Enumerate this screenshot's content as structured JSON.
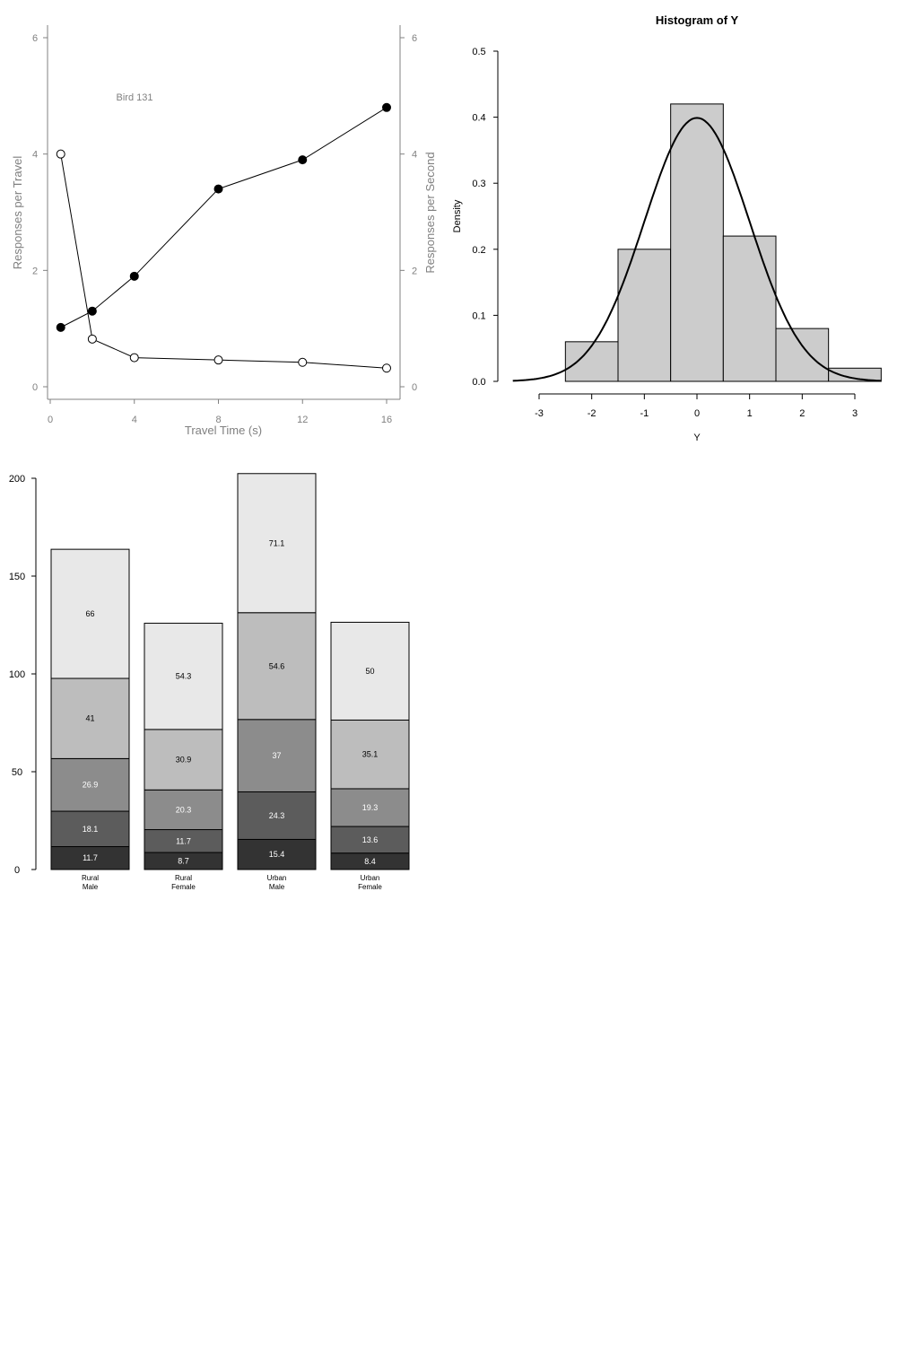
{
  "chart_data": [
    {
      "type": "line",
      "annotation": "Bird 131",
      "xlabel": "Travel Time (s)",
      "ylabel_left": "Responses per Travel",
      "ylabel_right": "Responses per Second",
      "xlim": [
        0,
        16
      ],
      "ylim": [
        0,
        6
      ],
      "x_ticks": [
        0,
        4,
        8,
        12,
        16
      ],
      "y_ticks": [
        0,
        2,
        4,
        6
      ],
      "axis_color": "#808080",
      "series": [
        {
          "marker": "filled-circle",
          "x": [
            0.5,
            2,
            4,
            8,
            12,
            16
          ],
          "y": [
            1.02,
            1.3,
            1.9,
            3.4,
            3.9,
            4.8
          ]
        },
        {
          "marker": "open-circle",
          "x": [
            0.5,
            2,
            4,
            8,
            12,
            16
          ],
          "y": [
            4.0,
            0.82,
            0.5,
            0.46,
            0.42,
            0.32
          ]
        }
      ]
    },
    {
      "type": "bar",
      "subtype": "histogram-with-density-curve",
      "title": "Histogram of Y",
      "xlabel": "Y",
      "ylabel": "Density",
      "xlim": [
        -3.5,
        3.5
      ],
      "ylim": [
        0,
        0.5
      ],
      "x_ticks": [
        -3,
        -2,
        -1,
        0,
        1,
        2,
        3
      ],
      "y_ticks": [
        0.0,
        0.1,
        0.2,
        0.3,
        0.4,
        0.5
      ],
      "y_tick_labels": [
        "0.0",
        "0.1",
        "0.2",
        "0.3",
        "0.4",
        "0.5"
      ],
      "bins": [
        {
          "from": -2.5,
          "to": -1.5,
          "density": 0.06
        },
        {
          "from": -1.5,
          "to": -0.5,
          "density": 0.2
        },
        {
          "from": -0.5,
          "to": 0.5,
          "density": 0.42
        },
        {
          "from": 0.5,
          "to": 1.5,
          "density": 0.22
        },
        {
          "from": 1.5,
          "to": 2.5,
          "density": 0.08
        },
        {
          "from": 2.5,
          "to": 3.5,
          "density": 0.02
        }
      ],
      "curve": {
        "kind": "normal-density",
        "mean": 0,
        "sd": 1
      },
      "bar_color": "#cccccc"
    },
    {
      "type": "bar",
      "subtype": "stacked",
      "ylim": [
        0,
        200
      ],
      "y_ticks": [
        0,
        50,
        100,
        150,
        200
      ],
      "categories": [
        [
          "Rural",
          "Male"
        ],
        [
          "Rural",
          "Female"
        ],
        [
          "Urban",
          "Male"
        ],
        [
          "Urban",
          "Female"
        ]
      ],
      "series": [
        {
          "color": "#333333",
          "label_color": "#ffffff",
          "values": [
            11.7,
            8.7,
            15.4,
            8.4
          ]
        },
        {
          "color": "#5c5c5c",
          "label_color": "#ffffff",
          "values": [
            18.1,
            11.7,
            24.3,
            13.6
          ]
        },
        {
          "color": "#8c8c8c",
          "label_color": "#ffffff",
          "values": [
            26.9,
            20.3,
            37,
            19.3
          ]
        },
        {
          "color": "#bdbdbd",
          "label_color": "#000000",
          "values": [
            41,
            30.9,
            54.6,
            35.1
          ]
        },
        {
          "color": "#e8e8e8",
          "label_color": "#000000",
          "values": [
            66,
            54.3,
            71.1,
            50
          ]
        }
      ]
    }
  ]
}
